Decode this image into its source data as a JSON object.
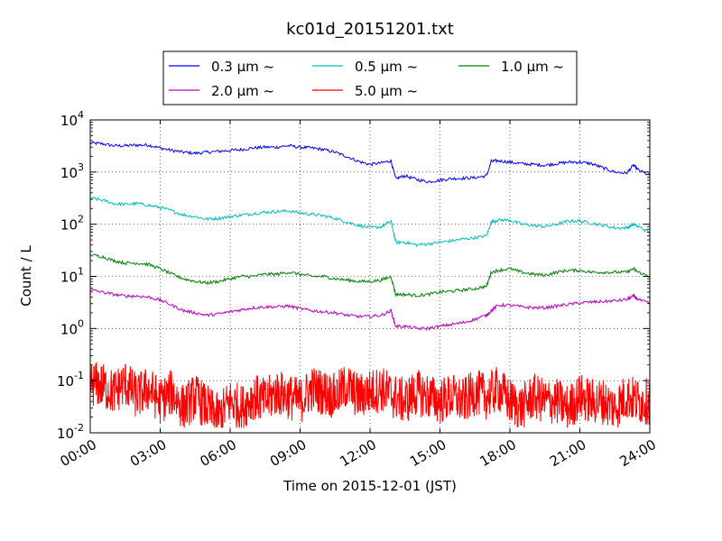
{
  "chart_data": {
    "type": "line",
    "title": "kc01d_20151201.txt",
    "xlabel": "Time on 2015-12-01 (JST)",
    "ylabel": "Count / L",
    "x_range_hours": [
      0,
      24
    ],
    "y_scale": "log",
    "ylim": [
      0.01,
      10000
    ],
    "grid": true,
    "legend_position": "top-center",
    "x_ticks": [
      "00:00",
      "03:00",
      "06:00",
      "09:00",
      "12:00",
      "15:00",
      "18:00",
      "21:00",
      "24:00"
    ],
    "y_ticks": [
      {
        "base": "10",
        "exp": "-2"
      },
      {
        "base": "10",
        "exp": "-1"
      },
      {
        "base": "10",
        "exp": "0"
      },
      {
        "base": "10",
        "exp": "1"
      },
      {
        "base": "10",
        "exp": "2"
      },
      {
        "base": "10",
        "exp": "3"
      },
      {
        "base": "10",
        "exp": "4"
      }
    ],
    "series": [
      {
        "name": "0.3 μm ~",
        "color": "#0000ff",
        "x": [
          0,
          0.5,
          1,
          1.5,
          2,
          2.5,
          3,
          3.5,
          4,
          4.5,
          5,
          5.5,
          6,
          6.5,
          7,
          7.5,
          8,
          8.5,
          9,
          9.5,
          10,
          10.5,
          11,
          11.5,
          12,
          12.5,
          12.9,
          13.1,
          13.5,
          14,
          14.5,
          15,
          15.5,
          16,
          16.5,
          17,
          17.2,
          17.5,
          18,
          18.5,
          19,
          19.5,
          20,
          20.5,
          21,
          21.5,
          22,
          22.5,
          23,
          23.3,
          23.5,
          24
        ],
        "y": [
          3600,
          3500,
          3200,
          3200,
          3300,
          3300,
          2900,
          2600,
          2400,
          2300,
          2400,
          2500,
          2600,
          2700,
          2900,
          3000,
          3000,
          3200,
          3000,
          2900,
          2700,
          2400,
          2000,
          1600,
          1400,
          1500,
          1650,
          750,
          850,
          720,
          650,
          700,
          750,
          760,
          780,
          850,
          1600,
          1650,
          1550,
          1450,
          1400,
          1350,
          1450,
          1550,
          1550,
          1450,
          1200,
          1000,
          950,
          1350,
          1100,
          850
        ]
      },
      {
        "name": "0.5 μm ~",
        "color": "#00bfbf",
        "x": [
          0,
          0.5,
          1,
          1.5,
          2,
          2.5,
          3,
          3.5,
          4,
          4.5,
          5,
          5.5,
          6,
          6.5,
          7,
          7.5,
          8,
          8.5,
          9,
          9.5,
          10,
          10.5,
          11,
          11.5,
          12,
          12.5,
          12.9,
          13.1,
          13.5,
          14,
          14.5,
          15,
          15.5,
          16,
          16.5,
          17,
          17.2,
          17.5,
          18,
          18.5,
          19,
          19.5,
          20,
          20.5,
          21,
          21.5,
          22,
          22.5,
          23,
          23.3,
          23.5,
          24
        ],
        "y": [
          320,
          290,
          250,
          240,
          250,
          230,
          210,
          180,
          150,
          140,
          125,
          130,
          140,
          150,
          160,
          170,
          175,
          180,
          165,
          155,
          145,
          130,
          110,
          95,
          85,
          90,
          115,
          45,
          45,
          40,
          42,
          45,
          48,
          52,
          55,
          60,
          110,
          120,
          120,
          100,
          95,
          90,
          100,
          115,
          115,
          105,
          95,
          85,
          85,
          100,
          90,
          70
        ]
      },
      {
        "name": "1.0 μm ~",
        "color": "#008000",
        "x": [
          0,
          0.5,
          1,
          1.5,
          2,
          2.5,
          3,
          3.5,
          4,
          4.5,
          5,
          5.5,
          6,
          6.5,
          7,
          7.5,
          8,
          8.5,
          9,
          9.5,
          10,
          10.5,
          11,
          11.5,
          12,
          12.5,
          12.9,
          13.1,
          13.5,
          14,
          14.5,
          15,
          15.5,
          16,
          16.5,
          17,
          17.2,
          17.5,
          18,
          18.5,
          19,
          19.5,
          20,
          20.5,
          21,
          21.5,
          22,
          22.5,
          23,
          23.3,
          23.5,
          24
        ],
        "y": [
          26,
          24,
          20,
          18,
          18,
          17,
          14,
          11,
          9,
          8,
          7.5,
          8,
          9,
          10,
          10,
          11,
          11,
          12,
          11,
          10,
          10,
          9,
          8.5,
          8,
          8,
          8.5,
          10,
          4.5,
          4.5,
          4.3,
          4.5,
          5,
          5.2,
          5.5,
          5.8,
          6.5,
          12,
          13,
          14,
          12,
          11,
          10.5,
          12,
          13,
          13,
          12,
          12,
          12,
          12,
          14,
          12,
          10
        ]
      },
      {
        "name": "2.0 μm ~",
        "color": "#bf00bf",
        "x": [
          0,
          0.5,
          1,
          1.5,
          2,
          2.5,
          3,
          3.5,
          4,
          4.5,
          5,
          5.5,
          6,
          6.5,
          7,
          7.5,
          8,
          8.5,
          9,
          9.5,
          10,
          10.5,
          11,
          11.5,
          12,
          12.5,
          12.9,
          13.1,
          13.5,
          14,
          14.5,
          15,
          15.5,
          16,
          16.5,
          17,
          17.2,
          17.5,
          18,
          18.5,
          19,
          19.5,
          20,
          20.5,
          21,
          21.5,
          22,
          22.5,
          23,
          23.3,
          23.5,
          24
        ],
        "y": [
          5.5,
          5,
          4.5,
          4.2,
          4.2,
          4,
          3.5,
          2.8,
          2.2,
          2,
          1.8,
          1.9,
          2.1,
          2.3,
          2.5,
          2.6,
          2.6,
          2.7,
          2.4,
          2.2,
          2.1,
          2,
          1.8,
          1.7,
          1.7,
          1.8,
          2.2,
          1.1,
          1.1,
          1.0,
          1.0,
          1.1,
          1.2,
          1.3,
          1.5,
          1.8,
          2.2,
          2.8,
          2.8,
          2.6,
          2.5,
          2.5,
          2.7,
          2.9,
          3.1,
          3.2,
          3.3,
          3.4,
          3.6,
          4.2,
          3.6,
          3.0
        ]
      },
      {
        "name": "5.0 μm ~",
        "color": "#ff0000",
        "x": [
          0,
          0.5,
          1,
          1.5,
          2,
          2.5,
          3,
          3.5,
          4,
          4.5,
          5,
          5.5,
          6,
          6.5,
          7,
          7.5,
          8,
          8.5,
          9,
          9.5,
          10,
          10.5,
          11,
          11.5,
          12,
          12.5,
          13,
          13.5,
          14,
          14.5,
          15,
          15.5,
          16,
          16.5,
          17,
          17.5,
          18,
          18.5,
          19,
          19.5,
          20,
          20.5,
          21,
          21.5,
          22,
          22.5,
          23,
          23.5,
          24
        ],
        "y": [
          0.09,
          0.08,
          0.06,
          0.09,
          0.05,
          0.07,
          0.04,
          0.06,
          0.03,
          0.05,
          0.03,
          0.02,
          0.04,
          0.03,
          0.05,
          0.04,
          0.06,
          0.05,
          0.04,
          0.07,
          0.06,
          0.05,
          0.08,
          0.05,
          0.06,
          0.07,
          0.05,
          0.04,
          0.06,
          0.05,
          0.04,
          0.05,
          0.04,
          0.06,
          0.05,
          0.07,
          0.04,
          0.03,
          0.05,
          0.04,
          0.04,
          0.03,
          0.05,
          0.04,
          0.04,
          0.03,
          0.05,
          0.04,
          0.04
        ]
      }
    ]
  }
}
